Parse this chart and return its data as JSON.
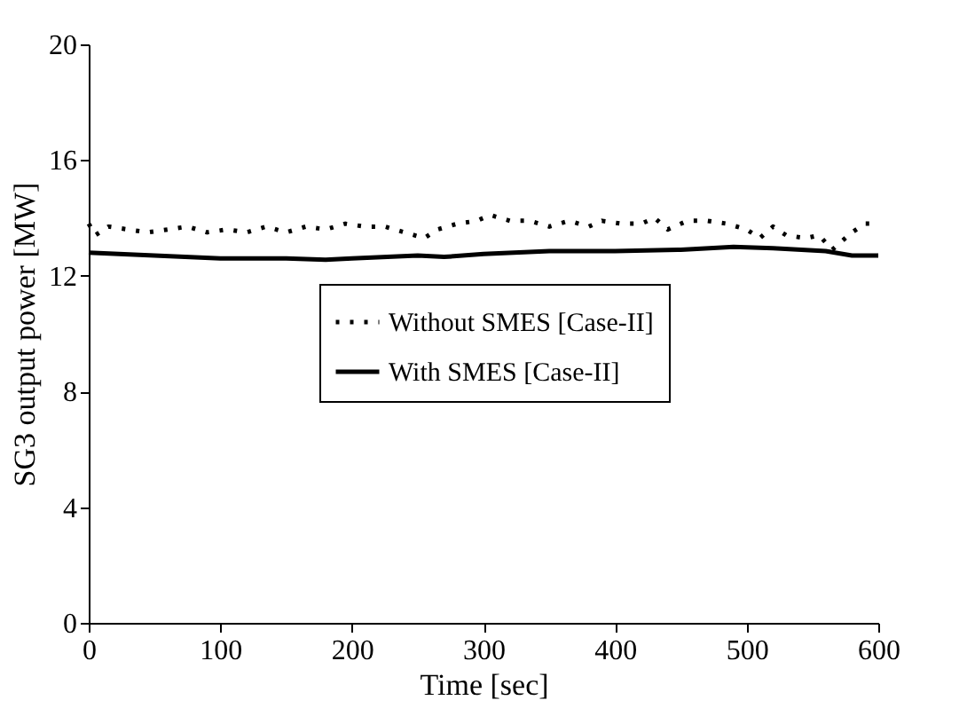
{
  "chart_data": {
    "type": "line",
    "xlabel": "Time [sec]",
    "ylabel": "SG3 output power [MW]",
    "xlim": [
      0,
      600
    ],
    "xticks": [
      0,
      100,
      200,
      300,
      400,
      500,
      600
    ],
    "ylim": [
      0,
      20
    ],
    "yticks": [
      0,
      4,
      8,
      12,
      16,
      20
    ],
    "grid": false,
    "legend": "center",
    "marker": "none",
    "series": [
      {
        "name": "Without SMES [Case-II]",
        "color": "#000000",
        "line_style": "dotted",
        "x": [
          0,
          5,
          15,
          30,
          45,
          60,
          75,
          90,
          105,
          120,
          135,
          150,
          165,
          180,
          195,
          210,
          225,
          240,
          255,
          265,
          280,
          295,
          305,
          320,
          335,
          350,
          365,
          380,
          390,
          405,
          420,
          430,
          440,
          455,
          470,
          485,
          500,
          510,
          520,
          530,
          545,
          555,
          565,
          580,
          590,
          600
        ],
        "values": [
          13.8,
          13.4,
          13.7,
          13.6,
          13.5,
          13.6,
          13.7,
          13.5,
          13.6,
          13.5,
          13.7,
          13.5,
          13.7,
          13.6,
          13.8,
          13.7,
          13.7,
          13.5,
          13.3,
          13.6,
          13.8,
          13.9,
          14.1,
          13.9,
          13.9,
          13.7,
          13.9,
          13.7,
          13.9,
          13.8,
          13.8,
          14.0,
          13.6,
          13.9,
          13.9,
          13.8,
          13.6,
          13.3,
          13.7,
          13.4,
          13.3,
          13.4,
          12.9,
          13.5,
          13.8,
          13.8
        ]
      },
      {
        "name": "With SMES [Case-II]",
        "color": "#000000",
        "line_style": "solid",
        "x": [
          0,
          50,
          100,
          150,
          180,
          200,
          250,
          270,
          300,
          350,
          400,
          450,
          490,
          520,
          560,
          580,
          600
        ],
        "values": [
          12.8,
          12.7,
          12.6,
          12.6,
          12.55,
          12.6,
          12.7,
          12.65,
          12.75,
          12.85,
          12.85,
          12.9,
          13.0,
          12.95,
          12.85,
          12.7,
          12.7
        ]
      }
    ]
  }
}
